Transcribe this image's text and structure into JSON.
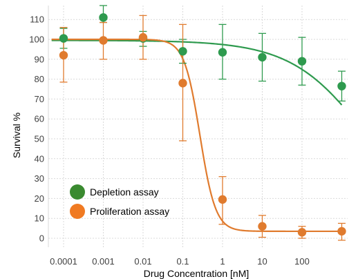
{
  "chart_data": {
    "type": "scatter",
    "title": "",
    "xlabel": "Drug Concentration [nM]",
    "ylabel": "Survival %",
    "x_scale": "log",
    "xlim": [
      5e-05,
      1000
    ],
    "ylim": [
      -5,
      115
    ],
    "x_ticks": [
      0.0001,
      0.001,
      0.01,
      0.1,
      1,
      10,
      100
    ],
    "x_tick_labels": [
      "0.0001",
      "0.001",
      "0.01",
      "0.1",
      "1",
      "10",
      "100"
    ],
    "y_ticks": [
      0,
      10,
      20,
      30,
      40,
      50,
      60,
      70,
      80,
      90,
      100,
      110
    ],
    "y_tick_labels": [
      "0",
      "10",
      "20",
      "30",
      "40",
      "50",
      "60",
      "70",
      "80",
      "90",
      "100",
      "110"
    ],
    "grid": true,
    "legend_position": "bottom-left",
    "series": [
      {
        "name": "Depletion assay",
        "color": "#2e9a4e",
        "x": [
          0.0001,
          0.001,
          0.01,
          0.1,
          1,
          10,
          100,
          1000
        ],
        "y": [
          100.5,
          111,
          100.5,
          94,
          93.5,
          91,
          89,
          76.5
        ],
        "err_low": [
          95.5,
          108.5,
          96.5,
          88,
          80,
          79,
          77,
          69
        ],
        "err_high": [
          105.5,
          117,
          104,
          100,
          107.5,
          103,
          101,
          84
        ],
        "fit": {
          "model": "4PL",
          "top": 99.5,
          "bottom": 0,
          "ic50": 5000,
          "hill": 0.45
        }
      },
      {
        "name": "Proliferation assay",
        "color": "#e07b2e",
        "x": [
          0.0001,
          0.001,
          0.01,
          0.1,
          1,
          10,
          100,
          1000
        ],
        "y": [
          92,
          99.5,
          101,
          78,
          19.5,
          6,
          3,
          3.5
        ],
        "err_low": [
          78.5,
          90,
          90,
          49,
          7,
          0.5,
          0,
          -1
        ],
        "err_high": [
          106,
          108.5,
          112,
          107.5,
          31,
          11.5,
          6,
          7.5
        ],
        "fit": {
          "model": "4PL",
          "top": 100,
          "bottom": 3.5,
          "ic50": 0.27,
          "hill": 2.2
        }
      }
    ]
  }
}
